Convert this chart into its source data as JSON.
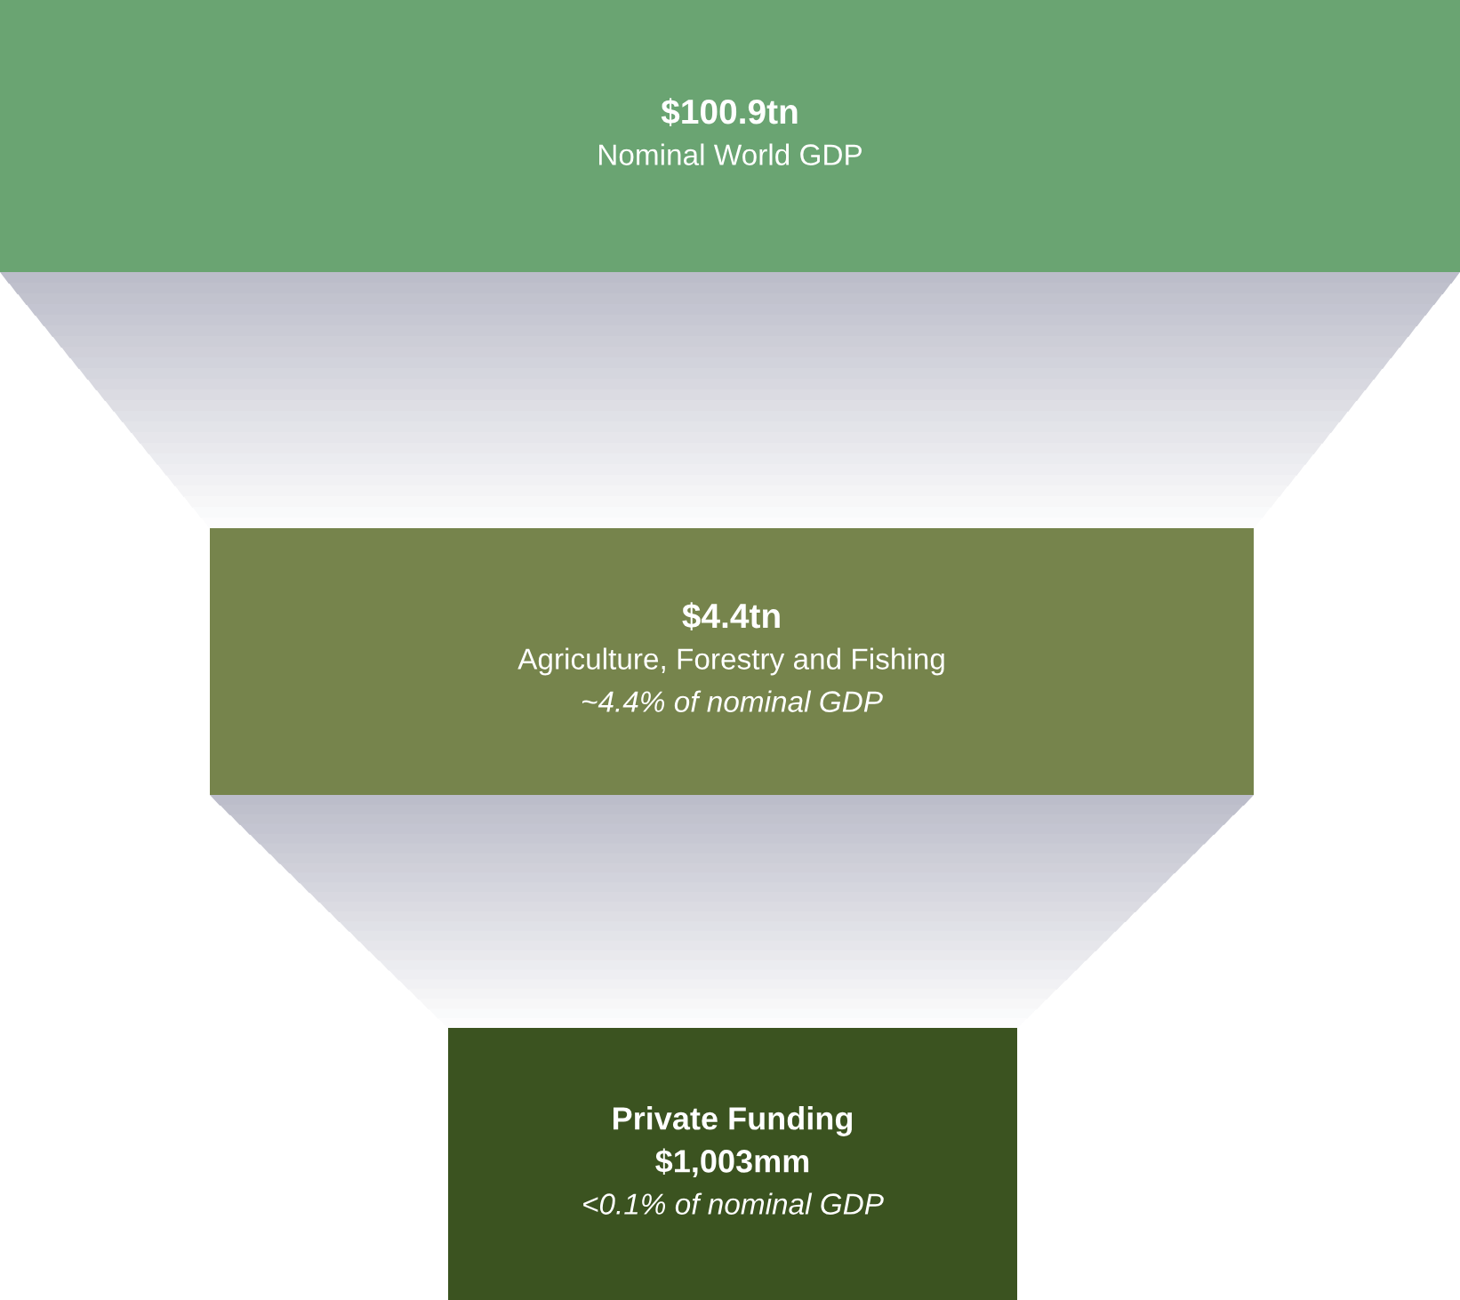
{
  "chart_data": {
    "type": "other",
    "categories": [
      "Nominal World GDP",
      "Agriculture, Forestry and Fishing",
      "Private Funding"
    ],
    "values": [
      100.9,
      4.4,
      1003
    ],
    "value_labels": [
      "$100.9tn",
      "$4.4tn",
      "$1,003mm"
    ],
    "colors": [
      "#6aa472",
      "#76844c",
      "#3b5320"
    ],
    "annotations": [
      {
        "text": "~4.4% of nominal GDP",
        "x": "Agriculture, Forestry and Fishing"
      },
      {
        "text": "<0.1% of nominal GDP",
        "x": "Private Funding"
      }
    ]
  }
}
